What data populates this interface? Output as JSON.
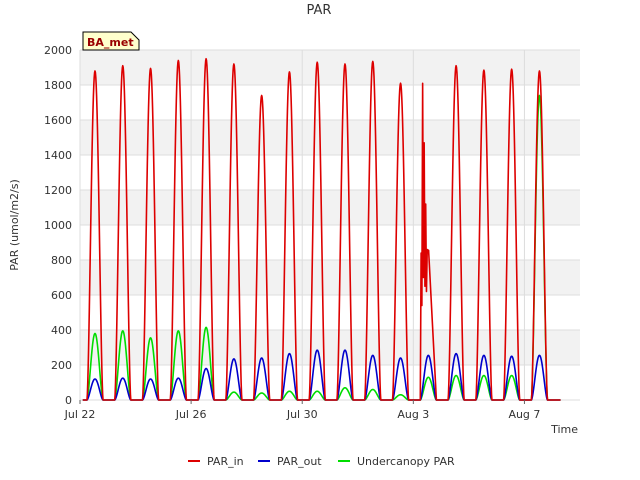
{
  "chart_data": {
    "type": "line",
    "title": "PAR",
    "xlabel": "Time",
    "ylabel": "PAR (umol/m2/s)",
    "badge": "BA_met",
    "x_start_label": "Jul 22",
    "x_end_label": "Aug 8",
    "xlim_days": [
      0,
      18
    ],
    "ylim": [
      0,
      2000
    ],
    "grid": true,
    "legend_position": "bottom-center",
    "x_ticks": [
      {
        "day": 0,
        "label": "Jul 22"
      },
      {
        "day": 4,
        "label": "Jul 26"
      },
      {
        "day": 8,
        "label": "Jul 30"
      },
      {
        "day": 12,
        "label": "Aug 3"
      },
      {
        "day": 16,
        "label": "Aug 7"
      }
    ],
    "y_ticks": [
      0,
      200,
      400,
      600,
      800,
      1000,
      1200,
      1400,
      1600,
      1800,
      2000
    ],
    "series": [
      {
        "name": "PAR_in",
        "color": "#dd0000",
        "daily_peaks": [
          1880,
          1910,
          1895,
          1940,
          1950,
          1920,
          1740,
          1875,
          1930,
          1920,
          1935,
          1810,
          1900,
          1910,
          1885,
          1890,
          1880
        ],
        "spikes_day_12": [
          840,
          540,
          1810,
          700,
          1470,
          650,
          1120,
          620,
          860
        ]
      },
      {
        "name": "PAR_out",
        "color": "#0000cc",
        "daily_peaks": [
          120,
          125,
          120,
          125,
          180,
          235,
          240,
          265,
          285,
          285,
          255,
          240,
          255,
          265,
          255,
          250,
          255
        ]
      },
      {
        "name": "Undercanopy PAR",
        "color": "#00dd00",
        "daily_peaks": [
          380,
          395,
          355,
          395,
          415,
          45,
          40,
          50,
          50,
          70,
          60,
          30,
          130,
          140,
          140,
          140,
          1740
        ]
      }
    ]
  }
}
